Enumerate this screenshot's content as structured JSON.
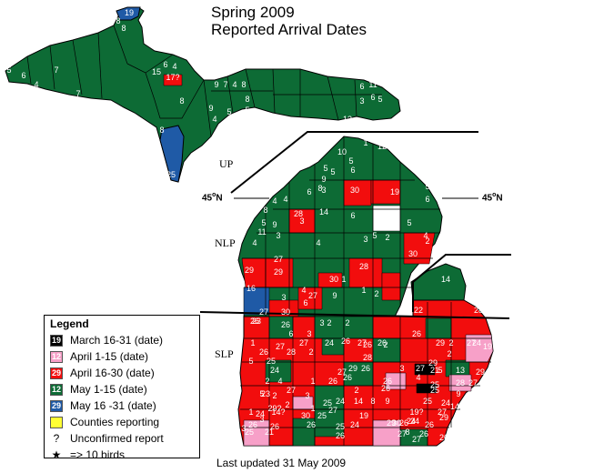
{
  "title": {
    "line1": "Spring 2009",
    "line2": "Reported Arrival Dates"
  },
  "regions": {
    "up": "UP",
    "nlp": "NLP",
    "slp": "SLP"
  },
  "latitude": {
    "label_left": "45",
    "label_right": "45",
    "unit": "N",
    "degree": "o"
  },
  "legend": {
    "title": "Legend",
    "items": [
      {
        "swatch_text": "19",
        "color": "#000000",
        "label": "March 16-31 (date)"
      },
      {
        "swatch_text": "12",
        "color": "#f7a0c8",
        "label": "April 1-15 (date)"
      },
      {
        "swatch_text": "29",
        "color": "#f20d0d",
        "label": "April 16-30 (date)"
      },
      {
        "swatch_text": "12",
        "color": "#0d6b35",
        "label": "May 1-15 (date)"
      },
      {
        "swatch_text": "29",
        "color": "#1f5aa6",
        "label": "May 16 -31 (date)"
      },
      {
        "swatch_text": "",
        "color": "#ffff33",
        "label": "Counties reporting"
      }
    ],
    "unconfirmed_symbol": "?",
    "unconfirmed_label": "Unconfirmed report",
    "star_symbol": "★",
    "star_label": "=> 10 birds"
  },
  "footer": "Last updated 31 May 2009",
  "colors": {
    "may_early": "#0d6b35",
    "april_late": "#f20d0d",
    "april_early": "#f7a0c8",
    "march_late": "#000000",
    "may_late": "#1f5aa6",
    "no_report": "#ffffff",
    "border": "#000000"
  },
  "county_labels": [
    "19",
    "8",
    "8",
    "5",
    "6",
    "4",
    "7",
    "7",
    "6",
    "7",
    "15",
    "6",
    "4",
    "17?",
    "9",
    "7",
    "4",
    "8",
    "3",
    "8",
    "6",
    "11",
    "6",
    "5",
    "3",
    "8",
    "4",
    "9",
    "5",
    "5",
    "8",
    "25",
    "13",
    "1",
    "12",
    "10",
    "5",
    "6",
    "5",
    "5",
    "9",
    "8",
    "6",
    "3",
    "30",
    "19",
    "5",
    "6",
    "4",
    "4",
    "8",
    "5",
    "11",
    "28",
    "3",
    "14",
    "6",
    "9",
    "3",
    "4",
    "4",
    "3",
    "5",
    "2",
    "5",
    "4",
    "2",
    "30",
    "29",
    "27",
    "29",
    "28",
    "30",
    "1",
    "4",
    "16",
    "3",
    "30",
    "6",
    "27",
    "9",
    "1",
    "2",
    "14",
    "22",
    "28",
    "27",
    "26",
    "23",
    "3",
    "2",
    "2",
    "26",
    "1",
    "6",
    "3",
    "27",
    "24",
    "26",
    "27",
    "26",
    "28",
    "2",
    "27",
    "26",
    "26",
    "26",
    "28",
    "2",
    "2",
    "29",
    "2",
    "27",
    "24",
    "5",
    "25",
    "24",
    "27",
    "4",
    "1",
    "26",
    "3",
    "26",
    "2",
    "27",
    "29",
    "5",
    "13",
    "19",
    "23",
    "27",
    "26",
    "26",
    "29",
    "2",
    "26",
    "4",
    "28",
    "27",
    "29",
    "25",
    "9",
    "1",
    "5",
    "2",
    "3",
    "1",
    "14",
    "8",
    "9",
    "30",
    "27",
    "24",
    "19",
    "25",
    "25",
    "2",
    "29?",
    "19?",
    "25",
    "24",
    "14",
    "27",
    "24",
    "26",
    "29",
    "30",
    "24",
    "8",
    "26",
    "24",
    "3",
    "3",
    "26",
    "26",
    "25",
    "26",
    "21",
    "25",
    "24",
    "29",
    "26",
    "27",
    "27",
    "26",
    "26",
    "21",
    "25",
    "14?",
    "6",
    "28",
    "11",
    "24",
    "8",
    "3",
    "24",
    "5",
    "27",
    "27",
    "8",
    "2",
    "25",
    "8",
    "29?",
    "27?",
    "14?"
  ]
}
